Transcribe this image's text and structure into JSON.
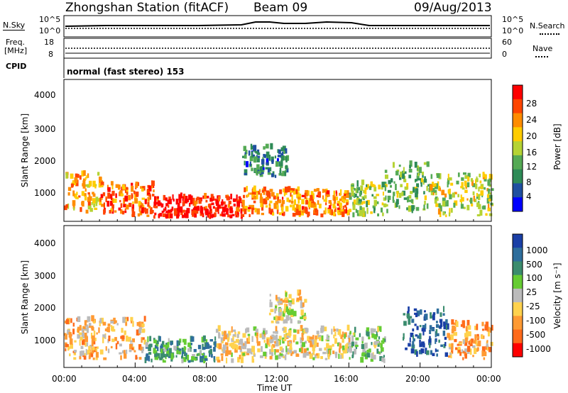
{
  "header": {
    "station": "Zhongshan Station (fitACF)",
    "beam": "Beam 09",
    "date": "09/Aug/2013"
  },
  "strip": {
    "nsky_label": "N.Sky",
    "nsearch_label": "N.Search",
    "freq_label": "Freq.",
    "freq_unit": "[MHz]",
    "nave_label": "Nave",
    "cpid_label": "CPID",
    "cpid_text": "normal (fast stereo) 153",
    "noise_ticks_left": [
      "10^5",
      "10^0"
    ],
    "noise_ticks_right": [
      "10^5",
      "10^0"
    ],
    "freq_ticks": [
      "18",
      "8"
    ],
    "nave_ticks": [
      "60",
      "0"
    ]
  },
  "colors": {
    "power_scale": [
      "#0000ff",
      "#1f4fa0",
      "#2e8b57",
      "#55aa55",
      "#b5d334",
      "#ffcc00",
      "#ff8c00",
      "#ff4500",
      "#ff0000"
    ],
    "velocity_scale": [
      "#1a3fa6",
      "#2e6e9c",
      "#3b8c6e",
      "#66cc33",
      "#bbbbbb",
      "#ffd24d",
      "#ff9a33",
      "#ff6a1a",
      "#ff0000"
    ]
  },
  "chart_data": [
    {
      "type": "heatmap",
      "name": "power",
      "ylabel": "Slant Range [km]",
      "ylim": [
        180,
        4500
      ],
      "yticks": [
        "1000",
        "2000",
        "3000",
        "4000"
      ],
      "colorbar": {
        "label": "Power [dB]",
        "ticks": [
          "28",
          "24",
          "20",
          "16",
          "12",
          "8",
          "4"
        ],
        "range": [
          0,
          30
        ]
      },
      "regions": [
        {
          "t": [
            0.0,
            2.0
          ],
          "r": [
            400,
            1600
          ],
          "level": 20
        },
        {
          "t": [
            2.0,
            5.0
          ],
          "r": [
            300,
            1300
          ],
          "level": 24
        },
        {
          "t": [
            5.0,
            10.0
          ],
          "r": [
            250,
            900
          ],
          "level": 28
        },
        {
          "t": [
            10.0,
            16.0
          ],
          "r": [
            300,
            1100
          ],
          "level": 22
        },
        {
          "t": [
            10.0,
            12.5
          ],
          "r": [
            1500,
            2400
          ],
          "level": 8
        },
        {
          "t": [
            16.0,
            18.0
          ],
          "r": [
            300,
            1300
          ],
          "level": 14
        },
        {
          "t": [
            18.0,
            20.5
          ],
          "r": [
            400,
            1900
          ],
          "level": 12
        },
        {
          "t": [
            20.5,
            24.0
          ],
          "r": [
            300,
            1600
          ],
          "level": 16
        }
      ]
    },
    {
      "type": "heatmap",
      "name": "velocity",
      "ylabel": "Slant Range [km]",
      "xlabel": "Time UT",
      "ylim": [
        180,
        4500
      ],
      "yticks": [
        "1000",
        "2000",
        "3000",
        "4000"
      ],
      "xticks": [
        "00:00",
        "04:00",
        "08:00",
        "12:00",
        "16:00",
        "20:00",
        "00:00"
      ],
      "xlim_hours": [
        0,
        24
      ],
      "colorbar": {
        "label": "Velocity [m s⁻¹]",
        "ticks": [
          "1000",
          "500",
          "100",
          "25",
          "-25",
          "-100",
          "-500",
          "-1000"
        ],
        "range": [
          -1000,
          1000
        ]
      },
      "regions": [
        {
          "t": [
            0.0,
            4.5
          ],
          "r": [
            400,
            1600
          ],
          "level": -300
        },
        {
          "t": [
            4.5,
            8.5
          ],
          "r": [
            300,
            1000
          ],
          "level": 400
        },
        {
          "t": [
            8.5,
            11.0
          ],
          "r": [
            300,
            1300
          ],
          "level": -200
        },
        {
          "t": [
            11.0,
            16.0
          ],
          "r": [
            400,
            1300
          ],
          "level": -150
        },
        {
          "t": [
            11.5,
            13.5
          ],
          "r": [
            1500,
            2400
          ],
          "level": -100
        },
        {
          "t": [
            16.0,
            18.0
          ],
          "r": [
            300,
            1300
          ],
          "level": 200
        },
        {
          "t": [
            19.0,
            21.5
          ],
          "r": [
            500,
            1900
          ],
          "level": 700
        },
        {
          "t": [
            21.5,
            24.0
          ],
          "r": [
            400,
            1500
          ],
          "level": -400
        }
      ]
    }
  ]
}
